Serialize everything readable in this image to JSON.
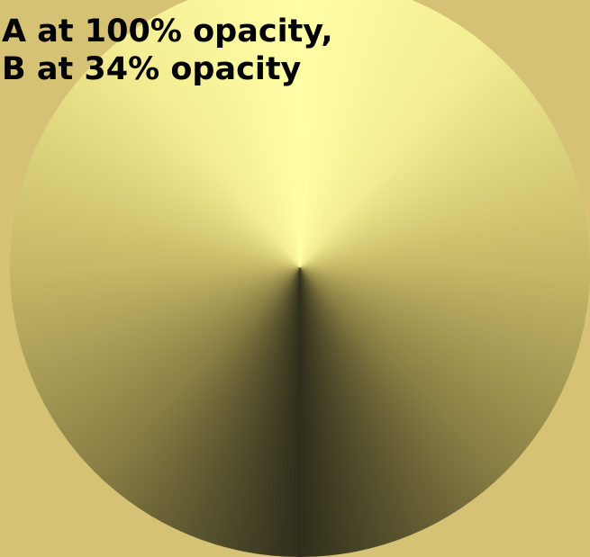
{
  "text": {
    "lines": [
      "A at 100% opacity,",
      "B at 34% opacity"
    ]
  }
}
